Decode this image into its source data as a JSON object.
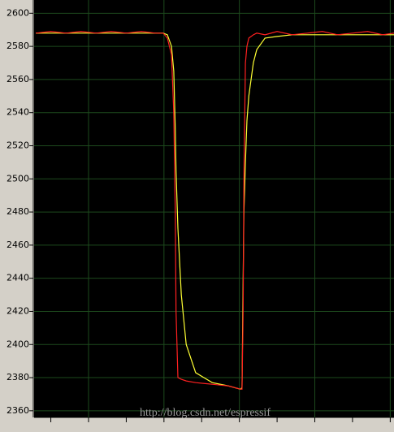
{
  "chart_data": {
    "type": "line",
    "x": [
      0.6,
      1.0,
      1.4,
      1.8,
      2.2,
      2.6,
      3.0,
      3.4,
      3.77,
      3.98,
      4.09,
      4.2,
      4.26,
      4.3,
      4.32,
      4.37,
      4.46,
      4.59,
      4.84,
      5.28,
      5.71,
      6.03,
      6.07,
      6.1,
      6.12,
      6.16,
      6.2,
      6.25,
      6.37,
      6.46,
      6.68,
      7.0,
      7.4,
      7.8,
      8.2,
      8.6,
      9.0,
      9.4,
      9.8,
      10.1
    ],
    "series": [
      {
        "color": "#ffff33",
        "values": [
          2588,
          2588,
          2588,
          2588,
          2588,
          2588,
          2588,
          2588,
          2588,
          2588,
          2587,
          2580,
          2565,
          2530,
          2505,
          2470,
          2430,
          2400,
          2383,
          2377,
          2375,
          2373,
          2374,
          2440,
          2480,
          2510,
          2535,
          2550,
          2570,
          2578,
          2585,
          2586,
          2587,
          2587,
          2587,
          2587,
          2587,
          2587,
          2587,
          2587
        ]
      },
      {
        "color": "#ff2020",
        "values": [
          2588,
          2589,
          2588,
          2589,
          2588,
          2589,
          2588,
          2589,
          2588,
          2588,
          2585,
          2575,
          2540,
          2480,
          2420,
          2380,
          2379,
          2378,
          2377,
          2376,
          2375,
          2373,
          2373,
          2420,
          2500,
          2570,
          2580,
          2585,
          2587,
          2588,
          2587,
          2589,
          2587,
          2588,
          2589,
          2587,
          2588,
          2589,
          2587,
          2588
        ]
      }
    ],
    "xlim": [
      0.6,
      10.1
    ],
    "xticks": [
      1,
      2,
      3,
      4,
      5,
      6,
      7,
      8,
      9,
      10
    ],
    "ylim": [
      2356,
      2608
    ],
    "yticks": [
      2360,
      2380,
      2400,
      2420,
      2440,
      2460,
      2480,
      2500,
      2520,
      2540,
      2560,
      2580,
      2600
    ],
    "grid": true,
    "grid_color": "#1d4a1d",
    "watermark": "http://blog.csdn.net/espressif"
  }
}
